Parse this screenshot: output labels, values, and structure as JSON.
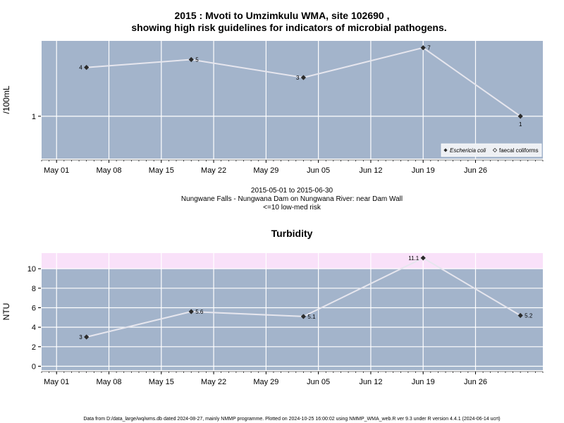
{
  "page": {
    "title_line1": "2015 : Mvoti to Umzimkulu WMA, site 102690 ,",
    "title_line2": "showing high risk guidelines for indicators of microbial pathogens.",
    "subtitle_line1": "2015-05-01 to 2015-06-30",
    "subtitle_line2": "Nungwane Falls - Nungwana Dam on Nungwana River: near Dam Wall",
    "subtitle_line3": "<=10 low-med risk",
    "footer": "Data from D:/data_large/wq/wms.db dated 2024-08-27, mainly NMMP programme. Plotted on 2024-10-25 16:00:02 using NMMP_WMA_web.R ver 9.3 under R version 4.4.1 (2024-06-14 ucrt)"
  },
  "colors": {
    "panel_bg": "#a3b4cb",
    "grid": "#ffffff",
    "line": "#e6e6ee",
    "point": "#2b2b2b",
    "risk_band": "#f9e1f9"
  },
  "chart_data": [
    {
      "type": "line",
      "title": "",
      "ylabel": "/100mL",
      "xlabel": "",
      "x_ticks": [
        "May 01",
        "May 08",
        "May 15",
        "May 22",
        "May 29",
        "Jun 05",
        "Jun 12",
        "Jun 19",
        "Jun 26"
      ],
      "x_tick_dates": [
        "2015-05-01",
        "2015-05-08",
        "2015-05-15",
        "2015-05-22",
        "2015-05-29",
        "2015-06-05",
        "2015-06-12",
        "2015-06-19",
        "2015-06-26"
      ],
      "xlim": [
        "2015-04-29",
        "2015-07-05"
      ],
      "y_scale": "log",
      "y_ticks": [
        1
      ],
      "y_tick_labels": [
        "1"
      ],
      "ylim": [
        0.3,
        8.5
      ],
      "grid": true,
      "legend_position": "bottom-right",
      "legend": [
        {
          "label": "Eschericia coli",
          "marker": "filled-diamond",
          "italic": true
        },
        {
          "label": "faecal coliforms",
          "marker": "open-diamond",
          "italic": false
        }
      ],
      "series": [
        {
          "name": "Eschericia coli",
          "x": [
            "2015-05-05",
            "2015-05-19",
            "2015-06-03",
            "2015-06-19",
            "2015-07-02"
          ],
          "values": [
            4,
            5,
            3,
            7,
            1
          ],
          "labels": [
            "4",
            "5",
            "3",
            "7",
            "1"
          ]
        }
      ]
    },
    {
      "type": "line",
      "title": "Turbidity",
      "ylabel": "NTU",
      "xlabel": "",
      "x_ticks": [
        "May 01",
        "May 08",
        "May 15",
        "May 22",
        "May 29",
        "Jun 05",
        "Jun 12",
        "Jun 19",
        "Jun 26"
      ],
      "x_tick_dates": [
        "2015-05-01",
        "2015-05-08",
        "2015-05-15",
        "2015-05-22",
        "2015-05-29",
        "2015-06-05",
        "2015-06-12",
        "2015-06-19",
        "2015-06-26"
      ],
      "xlim": [
        "2015-04-29",
        "2015-07-05"
      ],
      "y_ticks": [
        0,
        2,
        4,
        6,
        8,
        10
      ],
      "y_tick_labels": [
        "0",
        "2",
        "4",
        "6",
        "8",
        "10"
      ],
      "ylim": [
        -0.4,
        11.6
      ],
      "grid": true,
      "risk_band_above": 10,
      "series": [
        {
          "name": "",
          "x": [
            "2015-05-05",
            "2015-05-19",
            "2015-06-03",
            "2015-06-19",
            "2015-07-02"
          ],
          "values": [
            3,
            5.6,
            5.1,
            11.1,
            5.2
          ],
          "labels": [
            "3",
            "5.6",
            "5.1",
            "11.1",
            "5.2"
          ]
        }
      ]
    }
  ]
}
